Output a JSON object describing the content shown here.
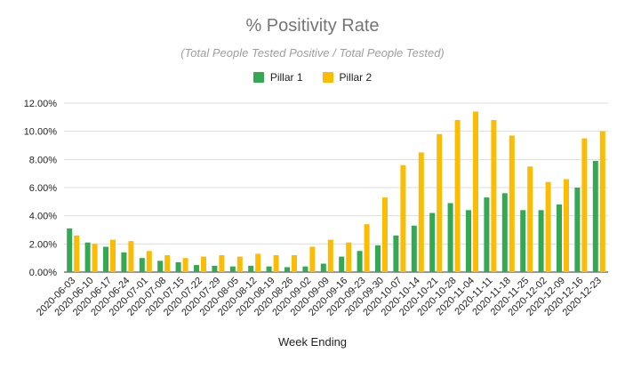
{
  "chart_data": {
    "type": "bar",
    "title": "% Positivity Rate",
    "subtitle": "(Total People Tested Positive / Total People Tested)",
    "xlabel": "Week Ending",
    "ylabel": "",
    "ylim": [
      0,
      0.12
    ],
    "yticks": [
      "0.00%",
      "2.00%",
      "4.00%",
      "6.00%",
      "8.00%",
      "10.00%",
      "12.00%"
    ],
    "grid": true,
    "legend_position": "top",
    "categories": [
      "2020-06-03",
      "2020-06-10",
      "2020-06-17",
      "2020-06-24",
      "2020-07-01",
      "2020-07-08",
      "2020-07-15",
      "2020-07-22",
      "2020-07-29",
      "2020-08-05",
      "2020-08-12",
      "2020-08-19",
      "2020-08-26",
      "2020-09-02",
      "2020-09-09",
      "2020-09-16",
      "2020-09-23",
      "2020-09-30",
      "2020-10-07",
      "2020-10-14",
      "2020-10-21",
      "2020-10-28",
      "2020-11-04",
      "2020-11-11",
      "2020-11-18",
      "2020-11-25",
      "2020-12-02",
      "2020-12-09",
      "2020-12-16",
      "2020-12-23"
    ],
    "series": [
      {
        "name": "Pillar 1",
        "color": "#34a853",
        "values": [
          0.031,
          0.021,
          0.018,
          0.014,
          0.01,
          0.008,
          0.007,
          0.005,
          0.0045,
          0.004,
          0.0045,
          0.004,
          0.0035,
          0.004,
          0.006,
          0.011,
          0.015,
          0.019,
          0.026,
          0.033,
          0.042,
          0.049,
          0.044,
          0.053,
          0.056,
          0.044,
          0.044,
          0.048,
          0.06,
          0.079
        ]
      },
      {
        "name": "Pillar 2",
        "color": "#fbbc04",
        "values": [
          0.026,
          0.02,
          0.023,
          0.022,
          0.015,
          0.012,
          0.01,
          0.011,
          0.012,
          0.011,
          0.013,
          0.012,
          0.012,
          0.018,
          0.023,
          0.021,
          0.034,
          0.053,
          0.076,
          0.085,
          0.098,
          0.108,
          0.114,
          0.108,
          0.097,
          0.075,
          0.064,
          0.066,
          0.095,
          0.1
        ]
      }
    ]
  }
}
